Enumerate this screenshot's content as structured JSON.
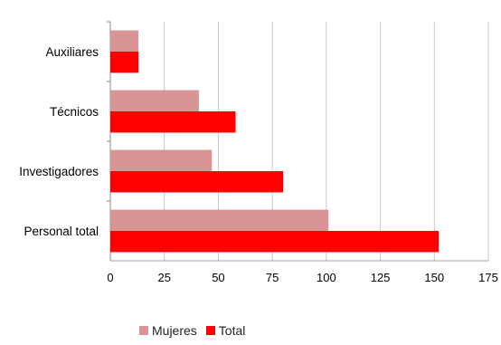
{
  "chart_data": {
    "type": "bar",
    "orientation": "horizontal",
    "categories": [
      "Auxiliares",
      "Técnicos",
      "Investigadores",
      "Personal total"
    ],
    "series": [
      {
        "name": "Mujeres",
        "values": [
          13,
          41,
          47,
          101
        ],
        "color": "#d99595"
      },
      {
        "name": "Total",
        "values": [
          13,
          58,
          80,
          152
        ],
        "color": "#ff0000"
      }
    ],
    "xlim": [
      0,
      175
    ],
    "x_ticks": [
      "0",
      "25",
      "50",
      "75",
      "100",
      "125",
      "150",
      "175"
    ],
    "grid": "vertical",
    "legend_position": "bottom"
  }
}
